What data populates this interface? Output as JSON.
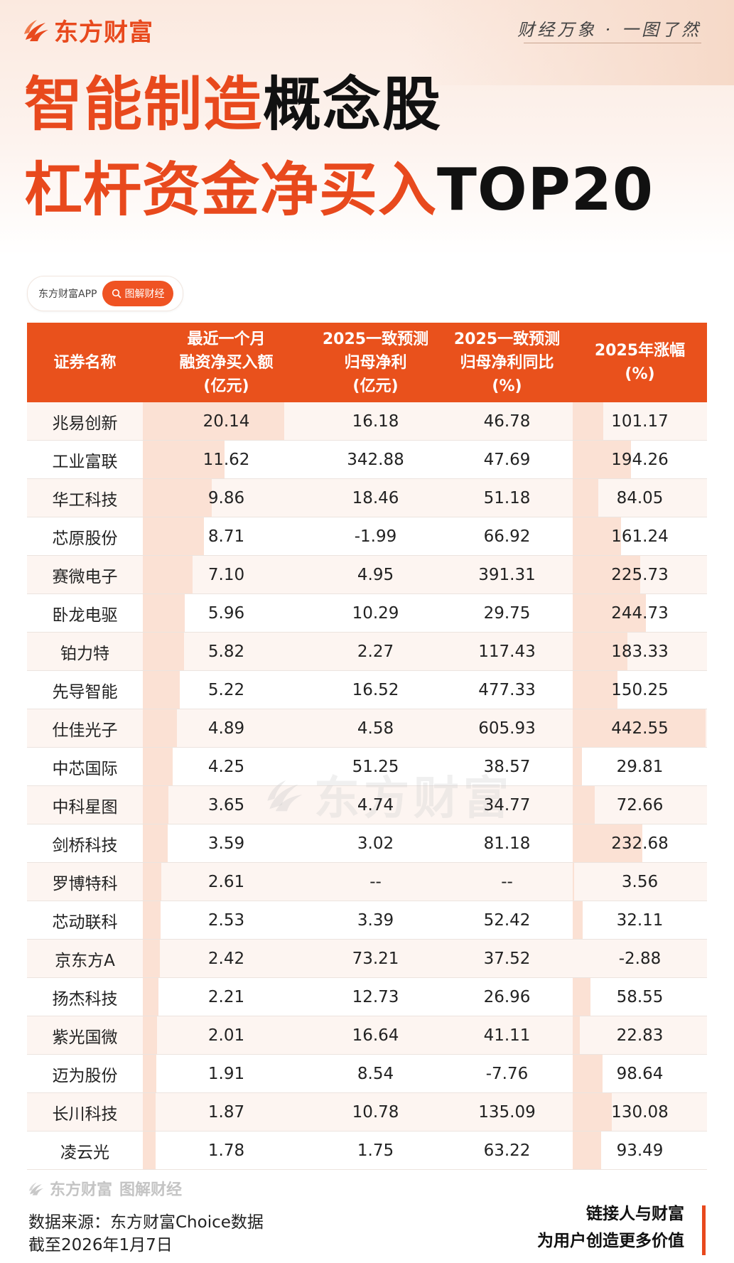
{
  "brand": {
    "logo_text": "东方财富",
    "slogan": "财经万象 · 一图了然",
    "accent_color": "#e8491d"
  },
  "title": {
    "line1_orange": "智能制造",
    "line1_black": "概念股",
    "line2_orange": "杠杆资金净买入",
    "line2_black": "TOP20"
  },
  "app_badge": {
    "app_name": "东方财富APP",
    "search_label": "图解财经",
    "search_icon": "search-icon"
  },
  "chart_data": {
    "type": "table",
    "columns": [
      "证券名称",
      "最近一个月\n融资净买入额\n(亿元)",
      "2025一致预测\n归母净利\n(亿元)",
      "2025一致预测\n归母净利同比\n(%)",
      "2025年涨幅\n(%)"
    ],
    "rows": [
      {
        "name": "兆易创新",
        "net_buy": "20.14",
        "profit": "16.18",
        "yoy": "46.78",
        "gain": "101.17"
      },
      {
        "name": "工业富联",
        "net_buy": "11.62",
        "profit": "342.88",
        "yoy": "47.69",
        "gain": "194.26"
      },
      {
        "name": "华工科技",
        "net_buy": "9.86",
        "profit": "18.46",
        "yoy": "51.18",
        "gain": "84.05"
      },
      {
        "name": "芯原股份",
        "net_buy": "8.71",
        "profit": "-1.99",
        "yoy": "66.92",
        "gain": "161.24"
      },
      {
        "name": "赛微电子",
        "net_buy": "7.10",
        "profit": "4.95",
        "yoy": "391.31",
        "gain": "225.73"
      },
      {
        "name": "卧龙电驱",
        "net_buy": "5.96",
        "profit": "10.29",
        "yoy": "29.75",
        "gain": "244.73"
      },
      {
        "name": "铂力特",
        "net_buy": "5.82",
        "profit": "2.27",
        "yoy": "117.43",
        "gain": "183.33"
      },
      {
        "name": "先导智能",
        "net_buy": "5.22",
        "profit": "16.52",
        "yoy": "477.33",
        "gain": "150.25"
      },
      {
        "name": "仕佳光子",
        "net_buy": "4.89",
        "profit": "4.58",
        "yoy": "605.93",
        "gain": "442.55"
      },
      {
        "name": "中芯国际",
        "net_buy": "4.25",
        "profit": "51.25",
        "yoy": "38.57",
        "gain": "29.81"
      },
      {
        "name": "中科星图",
        "net_buy": "3.65",
        "profit": "4.74",
        "yoy": "34.77",
        "gain": "72.66"
      },
      {
        "name": "剑桥科技",
        "net_buy": "3.59",
        "profit": "3.02",
        "yoy": "81.18",
        "gain": "232.68"
      },
      {
        "name": "罗博特科",
        "net_buy": "2.61",
        "profit": "--",
        "yoy": "--",
        "gain": "3.56"
      },
      {
        "name": "芯动联科",
        "net_buy": "2.53",
        "profit": "3.39",
        "yoy": "52.42",
        "gain": "32.11"
      },
      {
        "name": "京东方A",
        "net_buy": "2.42",
        "profit": "73.21",
        "yoy": "37.52",
        "gain": "-2.88"
      },
      {
        "name": "扬杰科技",
        "net_buy": "2.21",
        "profit": "12.73",
        "yoy": "26.96",
        "gain": "58.55"
      },
      {
        "name": "紫光国微",
        "net_buy": "2.01",
        "profit": "16.64",
        "yoy": "41.11",
        "gain": "22.83"
      },
      {
        "name": "迈为股份",
        "net_buy": "1.91",
        "profit": "8.54",
        "yoy": "-7.76",
        "gain": "98.64"
      },
      {
        "name": "长川科技",
        "net_buy": "1.87",
        "profit": "10.78",
        "yoy": "135.09",
        "gain": "130.08"
      },
      {
        "name": "凌云光",
        "net_buy": "1.78",
        "profit": "1.75",
        "yoy": "63.22",
        "gain": "93.49"
      }
    ],
    "bar_color": "#fbe1d4",
    "header_color": "#e9511c"
  },
  "watermark": "东方财富",
  "footer": {
    "logo_text": "东方财富",
    "logo_sub": "图解财经",
    "source_line1": "数据来源：东方财富Choice数据",
    "source_line2": "截至2026年1月7日",
    "tagline_line1": "链接人与财富",
    "tagline_line2": "为用户创造更多价值"
  }
}
